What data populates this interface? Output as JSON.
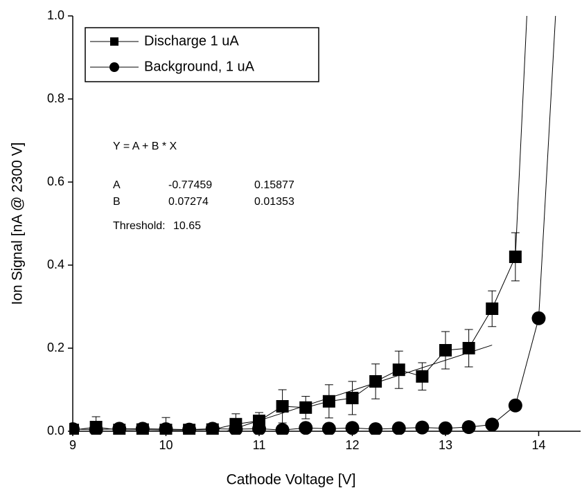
{
  "chart_data": {
    "type": "line",
    "xlabel": "Cathode Voltage [V]",
    "ylabel": "Ion Signal  [nA @ 2300 V]",
    "xlim": [
      9,
      14.45
    ],
    "ylim": [
      0,
      1.0
    ],
    "xticks": [
      9,
      10,
      11,
      12,
      13,
      14
    ],
    "yticks": [
      {
        "value": 0,
        "label": "0.0"
      },
      0.2,
      0.4,
      0.6,
      0.8,
      {
        "value": 1,
        "label": "1.0"
      }
    ],
    "legend": "top-left",
    "series": [
      {
        "name": "Discharge 1 uA",
        "marker": "square",
        "color": "#000000",
        "x": [
          9,
          9.25,
          9.5,
          9.75,
          10,
          10.25,
          10.5,
          10.75,
          11,
          11.25,
          11.5,
          11.75,
          12,
          12.25,
          12.5,
          12.75,
          13,
          13.25,
          13.5,
          13.75,
          14
        ],
        "values": [
          0.003,
          0.01,
          0.003,
          0.004,
          0.003,
          0.003,
          0.004,
          0.017,
          0.025,
          0.06,
          0.057,
          0.072,
          0.08,
          0.12,
          0.148,
          0.132,
          0.195,
          0.2,
          0.295,
          0.42,
          1.6
        ],
        "errors": [
          null,
          0.025,
          null,
          null,
          0.03,
          null,
          null,
          0.025,
          0.02,
          0.04,
          0.027,
          0.04,
          0.04,
          0.042,
          0.045,
          0.033,
          0.045,
          0.045,
          0.043,
          0.058,
          null
        ]
      },
      {
        "name": "Background,  1 uA",
        "marker": "circle",
        "color": "#000000",
        "x": [
          9,
          9.25,
          9.5,
          9.75,
          10,
          10.25,
          10.5,
          10.75,
          11,
          11.25,
          11.5,
          11.75,
          12,
          12.25,
          12.5,
          12.75,
          13,
          13.25,
          13.5,
          13.75,
          14,
          14.25
        ],
        "values": [
          0.005,
          0.004,
          0.006,
          0.006,
          0.005,
          0.004,
          0.006,
          0.005,
          0.006,
          0.003,
          0.008,
          0.006,
          0.008,
          0.005,
          0.007,
          0.009,
          0.007,
          0.01,
          0.016,
          0.062,
          0.272,
          1.28
        ]
      }
    ],
    "fit": {
      "equation": "Y = A + B * X",
      "rows": [
        [
          "A",
          -0.77459,
          0.15877
        ],
        [
          "B",
          0.07274,
          0.01353
        ]
      ],
      "threshold_label": "Threshold:",
      "threshold": 10.65,
      "x_end": 13.5
    }
  }
}
